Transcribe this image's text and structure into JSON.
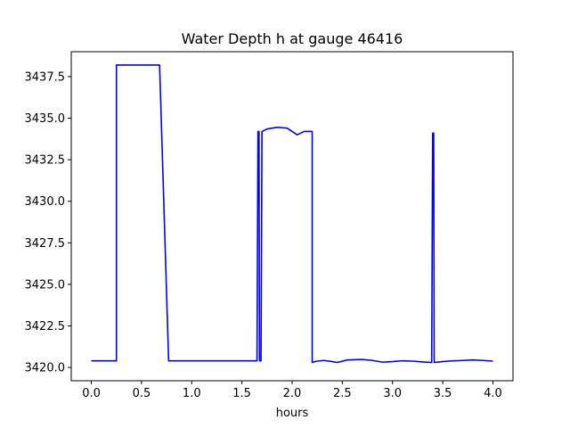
{
  "chart_data": {
    "type": "line",
    "title": "Water Depth h at gauge 46416",
    "xlabel": "hours",
    "ylabel": "",
    "xlim": [
      -0.2,
      4.2
    ],
    "ylim": [
      3419.2,
      3439.0
    ],
    "x_ticks": [
      "0.0",
      "0.5",
      "1.0",
      "1.5",
      "2.0",
      "2.5",
      "3.0",
      "3.5",
      "4.0"
    ],
    "y_ticks": [
      "3420.0",
      "3422.5",
      "3425.0",
      "3427.5",
      "3430.0",
      "3432.5",
      "3435.0",
      "3437.5"
    ],
    "grid": false,
    "series": [
      {
        "color": "#0000ff",
        "points": [
          [
            0.0,
            3420.4
          ],
          [
            0.25,
            3420.4
          ],
          [
            0.25,
            3438.2
          ],
          [
            0.68,
            3438.2
          ],
          [
            0.77,
            3420.4
          ],
          [
            1.65,
            3420.4
          ],
          [
            1.66,
            3434.2
          ],
          [
            1.67,
            3434.2
          ],
          [
            1.675,
            3420.4
          ],
          [
            1.69,
            3420.4
          ],
          [
            1.7,
            3434.2
          ],
          [
            1.75,
            3434.35
          ],
          [
            1.85,
            3434.45
          ],
          [
            1.95,
            3434.4
          ],
          [
            2.05,
            3434.0
          ],
          [
            2.12,
            3434.2
          ],
          [
            2.2,
            3434.2
          ],
          [
            2.2,
            3420.3
          ],
          [
            2.25,
            3420.38
          ],
          [
            2.32,
            3420.42
          ],
          [
            2.4,
            3420.35
          ],
          [
            2.45,
            3420.3
          ],
          [
            2.55,
            3420.45
          ],
          [
            2.7,
            3420.48
          ],
          [
            2.8,
            3420.42
          ],
          [
            2.9,
            3420.32
          ],
          [
            3.0,
            3420.35
          ],
          [
            3.1,
            3420.4
          ],
          [
            3.2,
            3420.38
          ],
          [
            3.3,
            3420.33
          ],
          [
            3.39,
            3420.3
          ],
          [
            3.4,
            3434.1
          ],
          [
            3.41,
            3434.1
          ],
          [
            3.415,
            3420.3
          ],
          [
            3.5,
            3420.35
          ],
          [
            3.6,
            3420.4
          ],
          [
            3.7,
            3420.42
          ],
          [
            3.8,
            3420.45
          ],
          [
            3.9,
            3420.42
          ],
          [
            4.0,
            3420.38
          ]
        ]
      }
    ]
  }
}
